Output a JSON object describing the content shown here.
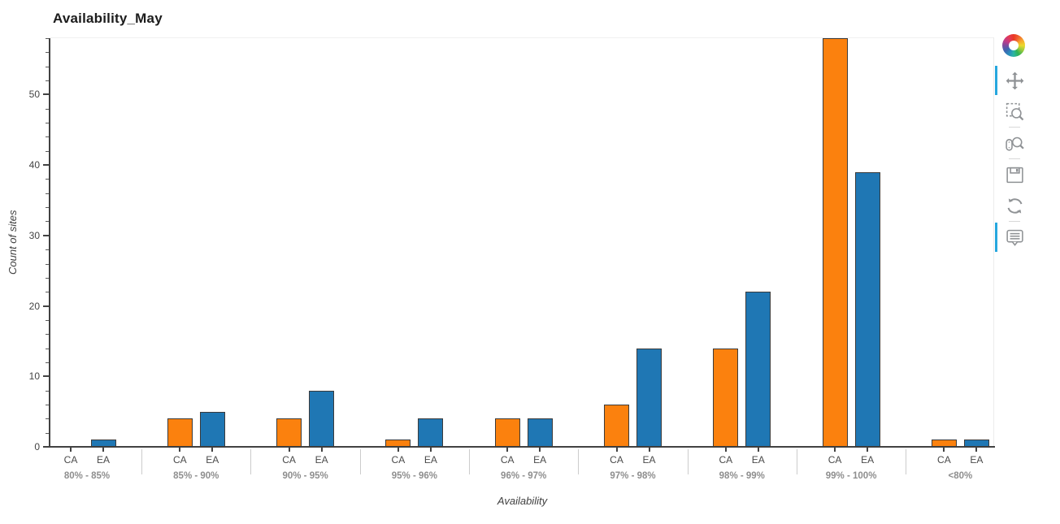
{
  "chart_data": {
    "type": "bar",
    "title": "Availability_May",
    "xlabel": "Availability",
    "ylabel": "Count of sites",
    "ylim": [
      0,
      58
    ],
    "yticks": [
      0,
      10,
      20,
      30,
      40,
      50
    ],
    "minor_tick_step": 2,
    "grid": false,
    "legend_position": "none",
    "categories": [
      "80% - 85%",
      "85% - 90%",
      "90% - 95%",
      "95% - 96%",
      "96% - 97%",
      "97% - 98%",
      "98% - 99%",
      "99% - 100%",
      "<80%"
    ],
    "subcategories": [
      "CA",
      "EA"
    ],
    "series": [
      {
        "name": "CA",
        "color": "#fb810e",
        "values": [
          0,
          4,
          4,
          1,
          4,
          6,
          14,
          58,
          1
        ]
      },
      {
        "name": "EA",
        "color": "#1f77b4",
        "values": [
          1,
          5,
          8,
          4,
          4,
          14,
          22,
          39,
          1
        ]
      }
    ]
  },
  "colors": {
    "bar_outline": "#3b3b3b",
    "axis": "#424242",
    "tick_label": "#444444",
    "group_label": "#8e8e8e",
    "separator": "#cccccc",
    "toolbar_icon": "#8f9295",
    "active_tool": "#26a7de"
  },
  "toolbar": {
    "logo": "bokeh-logo",
    "active_color": "#26a7de",
    "tools": [
      {
        "name": "pan",
        "active": true
      },
      {
        "name": "box-zoom",
        "active": false
      },
      {
        "name": "wheel-zoom",
        "active": false
      },
      {
        "name": "save",
        "active": false
      },
      {
        "name": "reset",
        "active": false
      },
      {
        "name": "hover",
        "active": true
      }
    ]
  }
}
